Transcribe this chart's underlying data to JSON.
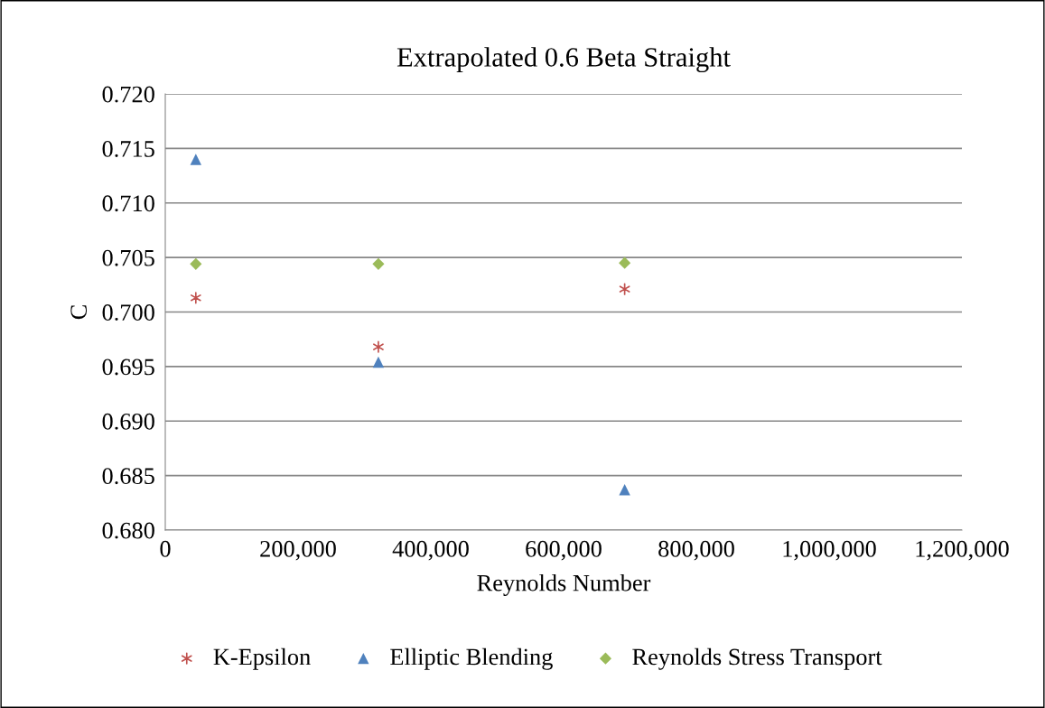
{
  "chart_data": {
    "type": "scatter",
    "title": "Extrapolated 0.6 Beta Straight",
    "xlabel": "Reynolds Number",
    "ylabel": "C",
    "xlim": [
      0,
      1200000
    ],
    "xticks": [
      {
        "value": 0,
        "label": "0"
      },
      {
        "value": 200000,
        "label": "200,000"
      },
      {
        "value": 400000,
        "label": "400,000"
      },
      {
        "value": 600000,
        "label": "600,000"
      },
      {
        "value": 800000,
        "label": "800,000"
      },
      {
        "value": 1000000,
        "label": "1,000,000"
      },
      {
        "value": 1200000,
        "label": "1,200,000"
      }
    ],
    "ylim": [
      0.68,
      0.72
    ],
    "yticks": [
      {
        "value": 0.68,
        "label": "0.680"
      },
      {
        "value": 0.685,
        "label": "0.685"
      },
      {
        "value": 0.69,
        "label": "0.690"
      },
      {
        "value": 0.695,
        "label": "0.695"
      },
      {
        "value": 0.7,
        "label": "0.700"
      },
      {
        "value": 0.705,
        "label": "0.705"
      },
      {
        "value": 0.71,
        "label": "0.710"
      },
      {
        "value": 0.715,
        "label": "0.715"
      },
      {
        "value": 0.72,
        "label": "0.720"
      }
    ],
    "grid": "y",
    "legend": "bottom",
    "series": [
      {
        "name": "K-Epsilon",
        "color": "#c0504d",
        "marker": "cross",
        "x": [
          46000,
          321000,
          692000
        ],
        "values": [
          0.7013,
          0.6968,
          0.7021
        ]
      },
      {
        "name": "Elliptic Blending",
        "color": "#4f81bd",
        "marker": "triangle",
        "x": [
          46000,
          321000,
          692000
        ],
        "values": [
          0.714,
          0.6954,
          0.6837
        ]
      },
      {
        "name": "Reynolds Stress Transport",
        "color": "#9bbb59",
        "marker": "diamond",
        "x": [
          46000,
          321000,
          692000
        ],
        "values": [
          0.7044,
          0.7044,
          0.7045
        ]
      }
    ]
  }
}
